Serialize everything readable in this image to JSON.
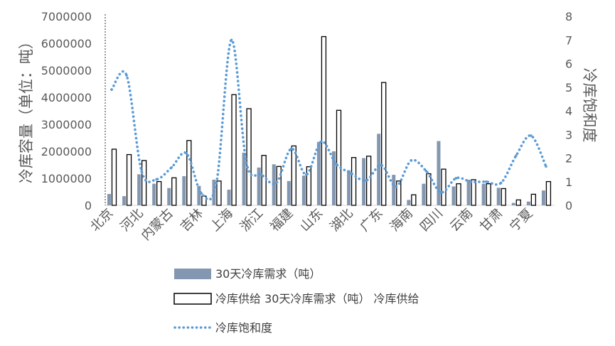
{
  "chart_data": {
    "type": "bar",
    "categories": [
      "北京",
      "",
      "河北",
      "",
      "内蒙古",
      "",
      "吉林",
      "",
      "上海",
      "",
      "浙江",
      "",
      "福建",
      "",
      "山东",
      "",
      "湖北",
      "",
      "广东",
      "",
      "海南",
      "",
      "四川",
      "",
      "云南",
      "",
      "甘肃",
      "",
      "宁夏",
      ""
    ],
    "series": [
      {
        "name": "30天冷库需求（吨）",
        "type": "bar",
        "axis": "left",
        "color": "#8497b0",
        "values": [
          420000,
          340000,
          1150000,
          800000,
          640000,
          1080000,
          720000,
          950000,
          580000,
          1950000,
          1400000,
          1520000,
          900000,
          1100000,
          2350000,
          2000000,
          1300000,
          1750000,
          2650000,
          1130000,
          200000,
          800000,
          2380000,
          700000,
          950000,
          800000,
          650000,
          90000,
          140000,
          550000
        ]
      },
      {
        "name": "冷库供给 30天冷库需求（吨） 冷库供给",
        "type": "bar",
        "axis": "left",
        "color": "#ffffff",
        "outline": "#000000",
        "values": [
          2080000,
          1880000,
          1660000,
          880000,
          1020000,
          2400000,
          340000,
          900000,
          4100000,
          3580000,
          1850000,
          1440000,
          2200000,
          1430000,
          6250000,
          3520000,
          1770000,
          1820000,
          4550000,
          900000,
          390000,
          1170000,
          1340000,
          800000,
          950000,
          800000,
          620000,
          200000,
          410000,
          880000
        ]
      },
      {
        "name": "冷库饱和度",
        "type": "line",
        "axis": "right",
        "color": "#5b9bd5",
        "values": [
          4.9,
          5.5,
          1.45,
          1.1,
          1.6,
          2.2,
          0.5,
          0.95,
          7.0,
          1.8,
          1.3,
          0.95,
          2.4,
          1.3,
          2.7,
          1.75,
          1.35,
          1.05,
          1.7,
          0.8,
          1.9,
          1.45,
          0.55,
          1.15,
          1.0,
          1.0,
          0.95,
          2.1,
          2.95,
          1.65
        ]
      }
    ],
    "ylabel": "冷库容量（单位：吨）",
    "y2label": "冷库饱和度",
    "ylim": [
      0,
      7000000
    ],
    "y2lim": [
      0,
      8
    ],
    "yticks": [
      "0",
      "1000000",
      "2000000",
      "3000000",
      "4000000",
      "5000000",
      "6000000",
      "7000000"
    ],
    "y2ticks": [
      "0",
      "1",
      "2",
      "3",
      "4",
      "5",
      "6",
      "7",
      "8"
    ],
    "legend": "bottom",
    "grid": false
  }
}
